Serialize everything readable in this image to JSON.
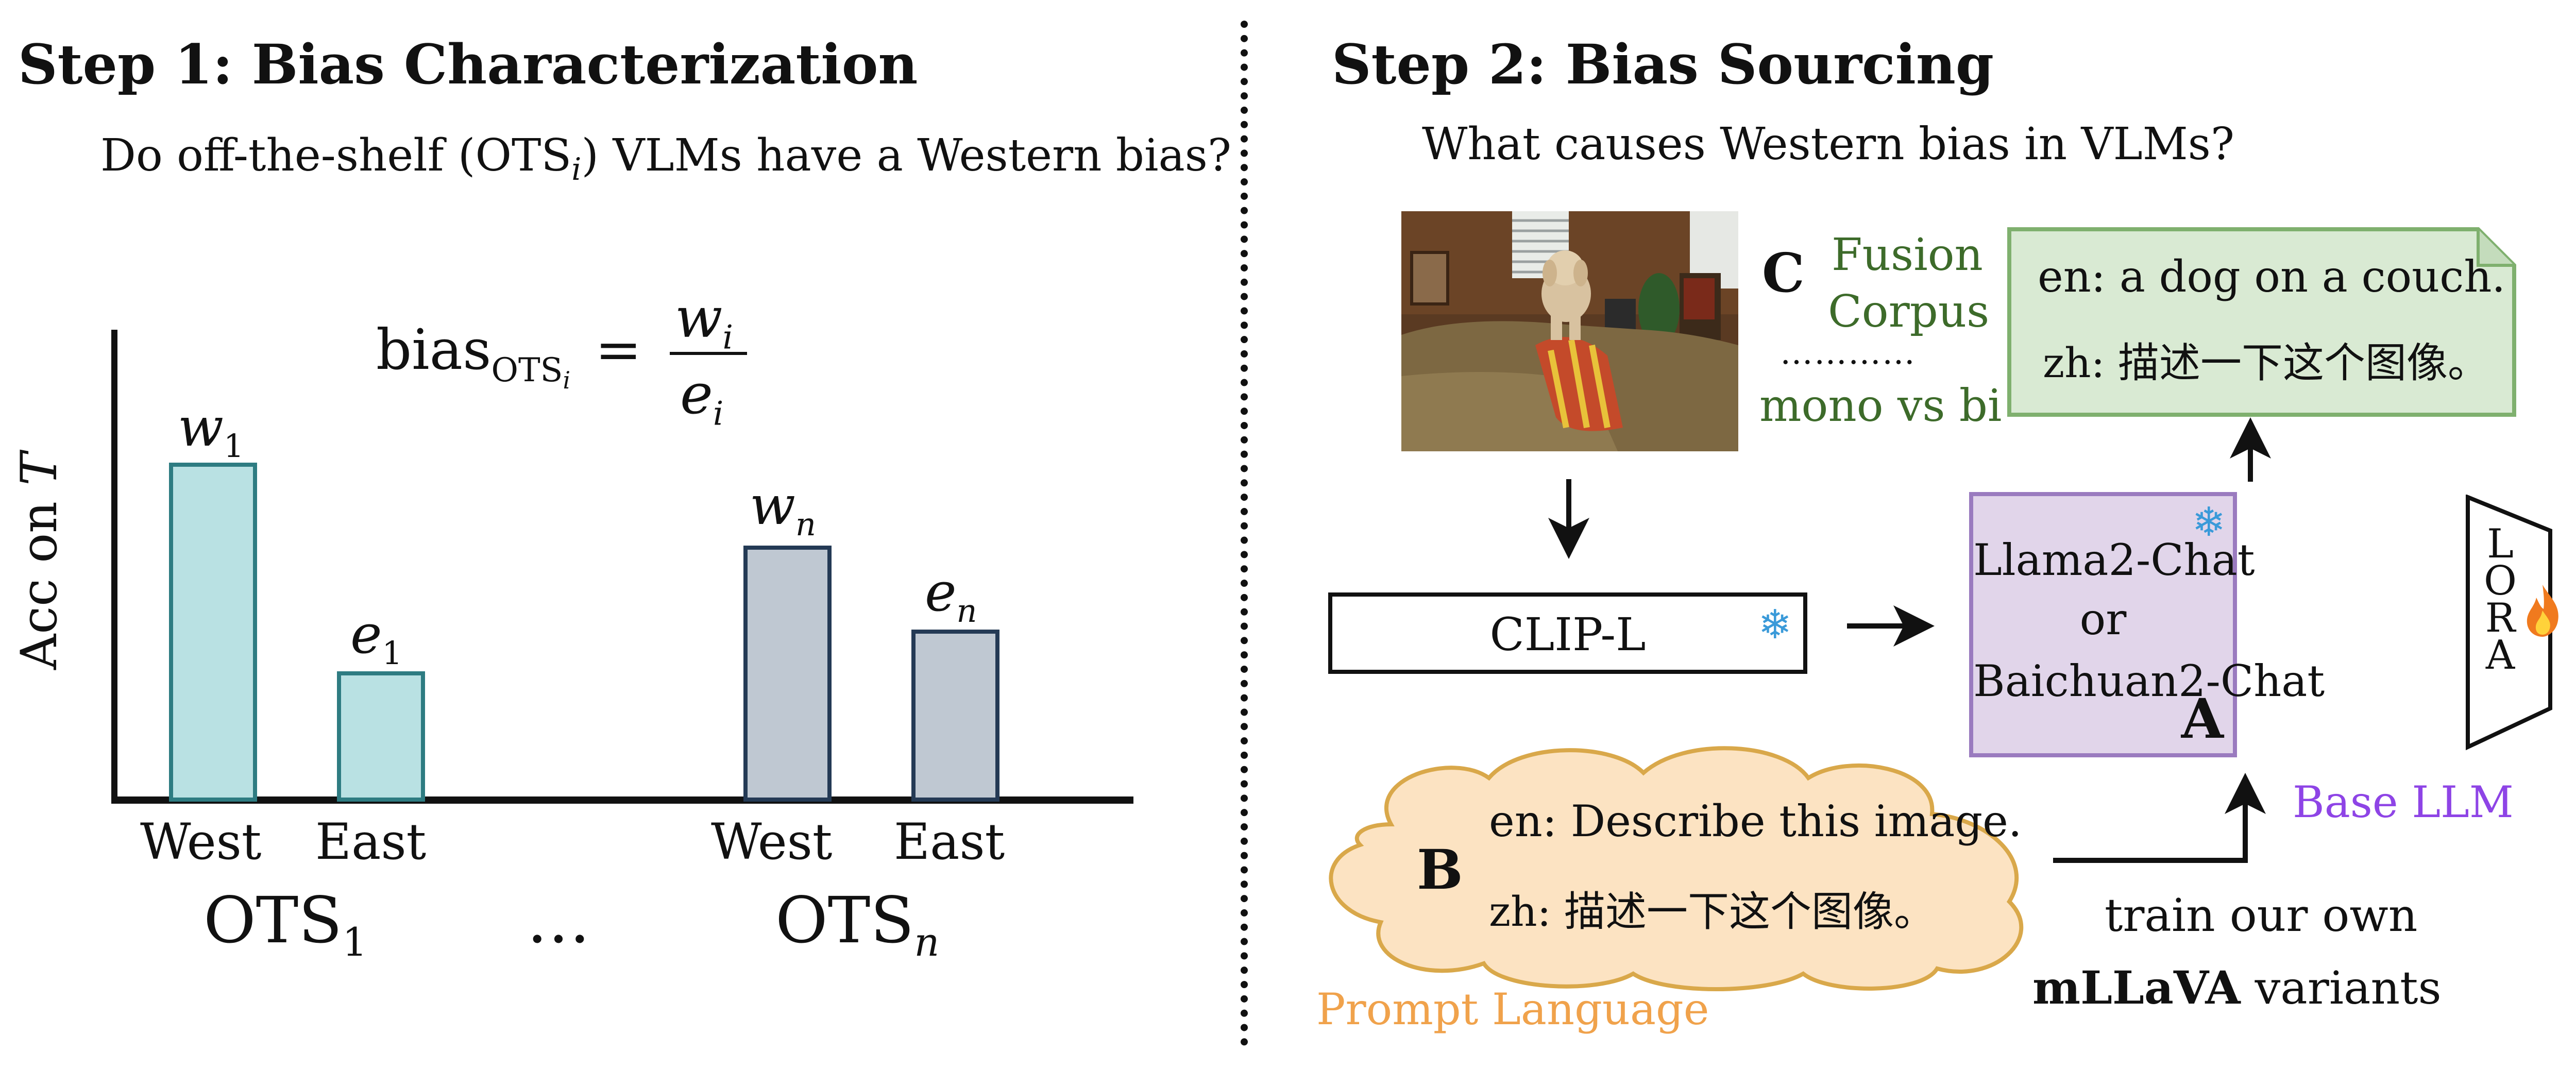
{
  "step1": {
    "heading": "Step 1: Bias Characterization",
    "question": "Do off-the-shelf (OTS",
    "question_sub": "i",
    "question_end": ") VLMs have a Western bias?",
    "formula_lhs": "bias",
    "formula_lhs_sub": "OTS",
    "formula_lhs_subsub": "i",
    "formula_eq": "=",
    "formula_num": "w",
    "formula_num_sub": "i",
    "formula_den": "e",
    "formula_den_sub": "i",
    "y_axis_label": "Acc on",
    "y_axis_var": "T",
    "bar_labels": [
      {
        "main": "w",
        "sub": "1"
      },
      {
        "main": "e",
        "sub": "1"
      },
      {
        "main": "w",
        "sub": "n"
      },
      {
        "main": "e",
        "sub": "n"
      }
    ],
    "x_labels": [
      "West",
      "East",
      "West",
      "East"
    ],
    "group_labels": [
      {
        "main": "OTS",
        "sub": "1"
      },
      {
        "main": "OTS",
        "sub": "n"
      }
    ],
    "ellipsis": "…"
  },
  "step2": {
    "heading": "Step 2: Bias Sourcing",
    "question": "What causes Western bias in VLMs?",
    "fusion": {
      "letter": "C",
      "line1": "Fusion",
      "line2": "Corpus",
      "dots": "…………",
      "line3": "mono vs bi"
    },
    "output_note": {
      "en": "en: a dog on a couch.",
      "zh": "zh: 描述一下这个图像。"
    },
    "clip_label": "CLIP-L",
    "llm": {
      "line1": "Llama2-Chat",
      "line2": "or",
      "line3": "Baichuan2-Chat",
      "letter": "A",
      "caption": "Base LLM"
    },
    "lora": [
      "L",
      "O",
      "R",
      "A"
    ],
    "prompt": {
      "letter": "B",
      "en": "en: Describe this image.",
      "zh": "zh: 描述一下这个图像。",
      "caption": "Prompt Language"
    },
    "train_line1": "train our own",
    "train_bold": "mLLaVA",
    "train_line2_rest": " variants"
  },
  "colors": {
    "west_bar": "#b9e1e3",
    "west_bar_stroke": "#2e7c82",
    "other_bar": "#bfc8d2",
    "other_bar_stroke": "#243a55",
    "note_fill": "#d9ead3",
    "note_stroke": "#7fb06e",
    "llm_fill": "#e1d5ea",
    "llm_stroke": "#9a7bbf",
    "cloud_fill": "#fce3c2",
    "cloud_stroke": "#d9a84a",
    "fusion_text": "#3d6b2a",
    "base_llm_text": "#8e44e6",
    "prompt_text": "#f0a24b"
  }
}
